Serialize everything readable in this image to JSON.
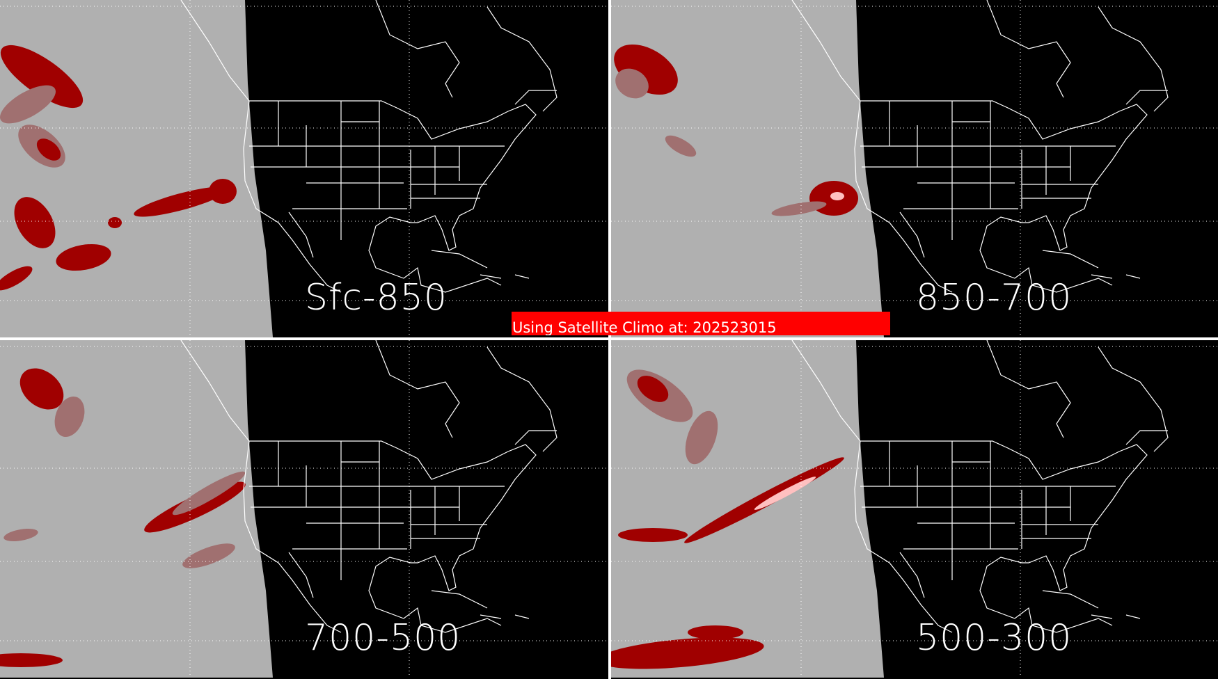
{
  "panels": [
    {
      "label": "Sfc-850"
    },
    {
      "label": "850-700"
    },
    {
      "label": "700-500"
    },
    {
      "label": "500-300"
    }
  ],
  "banner": {
    "text": "Using Satellite Climo at: 202523015"
  },
  "colors": {
    "ocean_grey": "#b0b0b0",
    "land_background": "#000000",
    "outline": "#ffffff",
    "dark_red": "#a00000",
    "light_red": "#a07070",
    "pink": "#ffc0c0",
    "banner": "#ff0000"
  }
}
